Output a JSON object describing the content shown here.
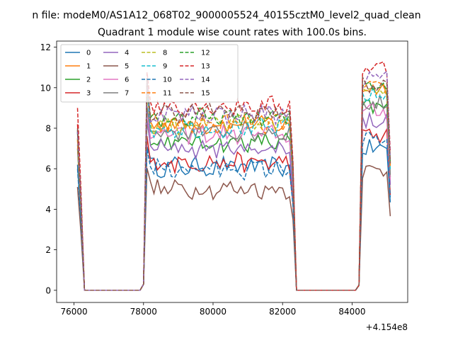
{
  "figure": {
    "suptitle": "n file: modeM0/AS1A12_068T02_9000005524_40155cztM0_level2_quad_clean",
    "offset_text": "+4.154e8"
  },
  "chart_data": {
    "type": "line",
    "title": "Quadrant 1 module wise count rates with 100.0s bins.",
    "xlabel": "",
    "ylabel": "",
    "x_offset": 415400000,
    "xlim": [
      75500,
      85600
    ],
    "ylim": [
      -0.6,
      12.3
    ],
    "xticks": [
      76000,
      78000,
      80000,
      82000,
      84000
    ],
    "yticks": [
      0,
      2,
      4,
      6,
      8,
      10,
      12
    ],
    "grid": false,
    "legend_position": "upper-left",
    "legend_columns": 4,
    "segments": [
      {
        "x_start": 76100,
        "x_end": 76300,
        "bins": 3
      },
      {
        "x_start": 76300,
        "x_end": 77900,
        "bins": 17,
        "zero": true
      },
      {
        "x_start": 78000,
        "x_end": 82300,
        "bins": 44
      },
      {
        "x_start": 82400,
        "x_end": 84100,
        "bins": 18,
        "zero": true
      },
      {
        "x_start": 84200,
        "x_end": 85100,
        "bins": 10
      }
    ],
    "series": [
      {
        "name": "0",
        "color": "#1f77b4",
        "dash": "solid",
        "start_value": 6.2,
        "level_orbit1": 6.1,
        "level_orbit2": 7.0
      },
      {
        "name": "1",
        "color": "#ff7f0e",
        "dash": "solid",
        "start_value": 7.5,
        "level_orbit1": 8.2,
        "level_orbit2": 10.0
      },
      {
        "name": "2",
        "color": "#2ca02c",
        "dash": "solid",
        "start_value": 7.0,
        "level_orbit1": 7.3,
        "level_orbit2": 9.0
      },
      {
        "name": "3",
        "color": "#d62728",
        "dash": "solid",
        "start_value": 8.2,
        "level_orbit1": 6.3,
        "level_orbit2": 7.6
      },
      {
        "name": "4",
        "color": "#9467bd",
        "dash": "solid",
        "start_value": 7.2,
        "level_orbit1": 7.0,
        "level_orbit2": 8.4
      },
      {
        "name": "5",
        "color": "#8c564b",
        "dash": "solid",
        "start_value": 5.1,
        "level_orbit1": 5.0,
        "level_orbit2": 5.9
      },
      {
        "name": "6",
        "color": "#e377c2",
        "dash": "solid",
        "start_value": 7.8,
        "level_orbit1": 7.7,
        "level_orbit2": 8.8
      },
      {
        "name": "7",
        "color": "#7f7f7f",
        "dash": "solid",
        "start_value": 7.8,
        "level_orbit1": 7.8,
        "level_orbit2": 9.2
      },
      {
        "name": "8",
        "color": "#bcbd22",
        "dash": "dashed",
        "start_value": 7.5,
        "level_orbit1": 8.2,
        "level_orbit2": 10.1
      },
      {
        "name": "9",
        "color": "#17becf",
        "dash": "dashed",
        "start_value": 7.8,
        "level_orbit1": 8.0,
        "level_orbit2": 9.6
      },
      {
        "name": "10",
        "color": "#1f77b4",
        "dash": "dashed",
        "start_value": 6.0,
        "level_orbit1": 6.0,
        "level_orbit2": 7.4
      },
      {
        "name": "11",
        "color": "#ff7f0e",
        "dash": "dashed",
        "start_value": 7.4,
        "level_orbit1": 8.2,
        "level_orbit2": 9.9
      },
      {
        "name": "12",
        "color": "#2ca02c",
        "dash": "dashed",
        "start_value": 7.9,
        "level_orbit1": 8.5,
        "level_orbit2": 10.2
      },
      {
        "name": "13",
        "color": "#d62728",
        "dash": "dashed",
        "start_value": 9.0,
        "level_orbit1": 9.1,
        "level_orbit2": 11.0
      },
      {
        "name": "14",
        "color": "#9467bd",
        "dash": "dashed",
        "start_value": 7.9,
        "level_orbit1": 8.7,
        "level_orbit2": 10.4
      },
      {
        "name": "15",
        "color": "#8c564b",
        "dash": "dashed",
        "start_value": 8.0,
        "level_orbit1": 8.8,
        "level_orbit2": 10.1
      }
    ]
  }
}
